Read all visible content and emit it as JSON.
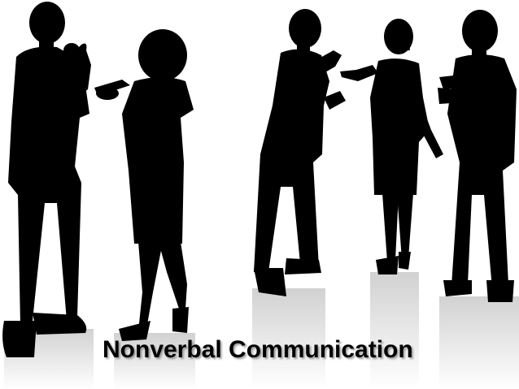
{
  "slide": {
    "title": "Nonverbal Communication"
  },
  "colors": {
    "background": "#ffffff",
    "silhouette": "#000000",
    "reflection": "#d9d9d9"
  }
}
